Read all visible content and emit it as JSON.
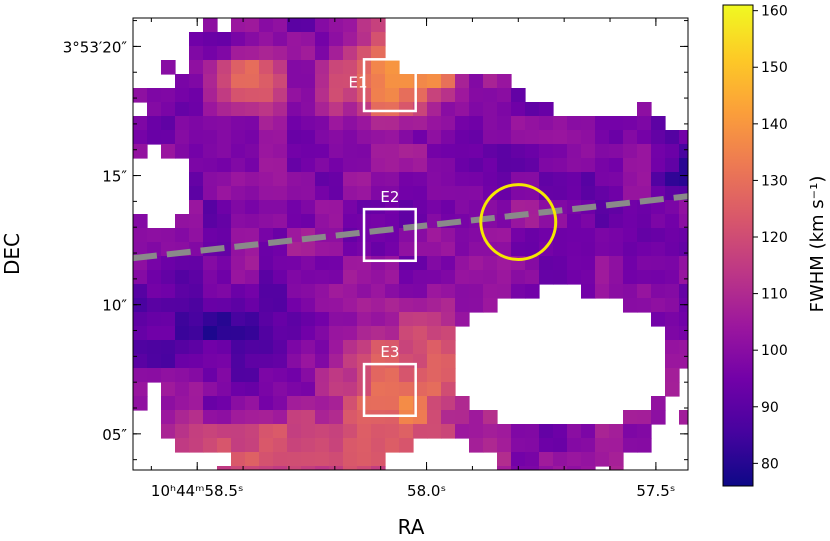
{
  "chart_data": {
    "type": "heatmap",
    "xlabel": "RA",
    "ylabel": "DEC",
    "x_ticks": [
      {
        "label": "10ʰ44ᵐ58.5ˢ",
        "ra_sec": 58.5
      },
      {
        "label": "58.0ˢ",
        "ra_sec": 58.0
      },
      {
        "label": "57.5ˢ",
        "ra_sec": 57.5
      }
    ],
    "y_ticks": [
      {
        "label": "3°53′20″",
        "dec_arcsec": 20
      },
      {
        "label": "15″",
        "dec_arcsec": 15
      },
      {
        "label": "10″",
        "dec_arcsec": 10
      },
      {
        "label": "05″",
        "dec_arcsec": 5
      }
    ],
    "xlim_ra_sec": [
      58.64,
      57.43
    ],
    "ylim_dec_arcsec": [
      3.6,
      21.1
    ],
    "colorbar": {
      "label": "FWHM (km s⁻¹)",
      "range": [
        76,
        161
      ],
      "ticks": [
        80,
        90,
        100,
        110,
        120,
        130,
        140,
        150,
        160
      ],
      "colormap": "plasma",
      "stops": [
        "#0d0887",
        "#46039f",
        "#7201a8",
        "#9c179e",
        "#bd3786",
        "#d8576b",
        "#ed7953",
        "#fb9f3a",
        "#fdca26",
        "#f0f921"
      ]
    },
    "apertures": [
      {
        "label": "E1",
        "ra_sec": 58.08,
        "dec_arcsec": 18.5,
        "size_arcsec": 2.0
      },
      {
        "label": "E2",
        "ra_sec": 58.08,
        "dec_arcsec": 12.7,
        "size_arcsec": 2.0
      },
      {
        "label": "E3",
        "ra_sec": 58.08,
        "dec_arcsec": 6.7,
        "size_arcsec": 2.0
      }
    ],
    "nucleus_circle": {
      "ra_sec": 57.8,
      "dec_arcsec": 13.2,
      "radius_arcsec": 1.45,
      "color": "#f5e800"
    },
    "slit_line": {
      "points": [
        [
          58.64,
          11.8
        ],
        [
          57.43,
          14.2
        ]
      ],
      "color": "#8a8a8a"
    },
    "regions": [
      {
        "ra_sec": 58.0,
        "dec_arcsec": 12.0,
        "dra": 0.35,
        "ddec": 4.6,
        "fwhm": 99
      },
      {
        "ra_sec": 57.65,
        "dec_arcsec": 14.0,
        "dra": 0.22,
        "ddec": 2.4,
        "fwhm": 97
      },
      {
        "ra_sec": 58.35,
        "dec_arcsec": 14.5,
        "dra": 0.2,
        "ddec": 2.2,
        "fwhm": 98
      },
      {
        "ra_sec": 58.08,
        "dec_arcsec": 18.4,
        "dra": 0.07,
        "ddec": 0.9,
        "fwhm": 148
      },
      {
        "ra_sec": 58.03,
        "dec_arcsec": 19.3,
        "dra": 0.05,
        "ddec": 0.8,
        "fwhm": 156
      },
      {
        "ra_sec": 58.04,
        "dec_arcsec": 8.0,
        "dra": 0.1,
        "ddec": 1.2,
        "fwhm": 137
      },
      {
        "ra_sec": 58.06,
        "dec_arcsec": 6.4,
        "dra": 0.06,
        "ddec": 0.9,
        "fwhm": 144
      },
      {
        "ra_sec": 58.18,
        "dec_arcsec": 4.6,
        "dra": 0.15,
        "ddec": 0.7,
        "fwhm": 128
      },
      {
        "ra_sec": 58.45,
        "dec_arcsec": 9.2,
        "dra": 0.12,
        "ddec": 0.9,
        "fwhm": 82
      },
      {
        "ra_sec": 57.45,
        "dec_arcsec": 15.2,
        "dra": 0.03,
        "ddec": 0.5,
        "fwhm": 76
      },
      {
        "ra_sec": 57.58,
        "dec_arcsec": 4.9,
        "dra": 0.08,
        "ddec": 1.0,
        "fwhm": 104
      },
      {
        "ra_sec": 58.38,
        "dec_arcsec": 18.5,
        "dra": 0.04,
        "ddec": 0.6,
        "fwhm": 134
      }
    ]
  }
}
